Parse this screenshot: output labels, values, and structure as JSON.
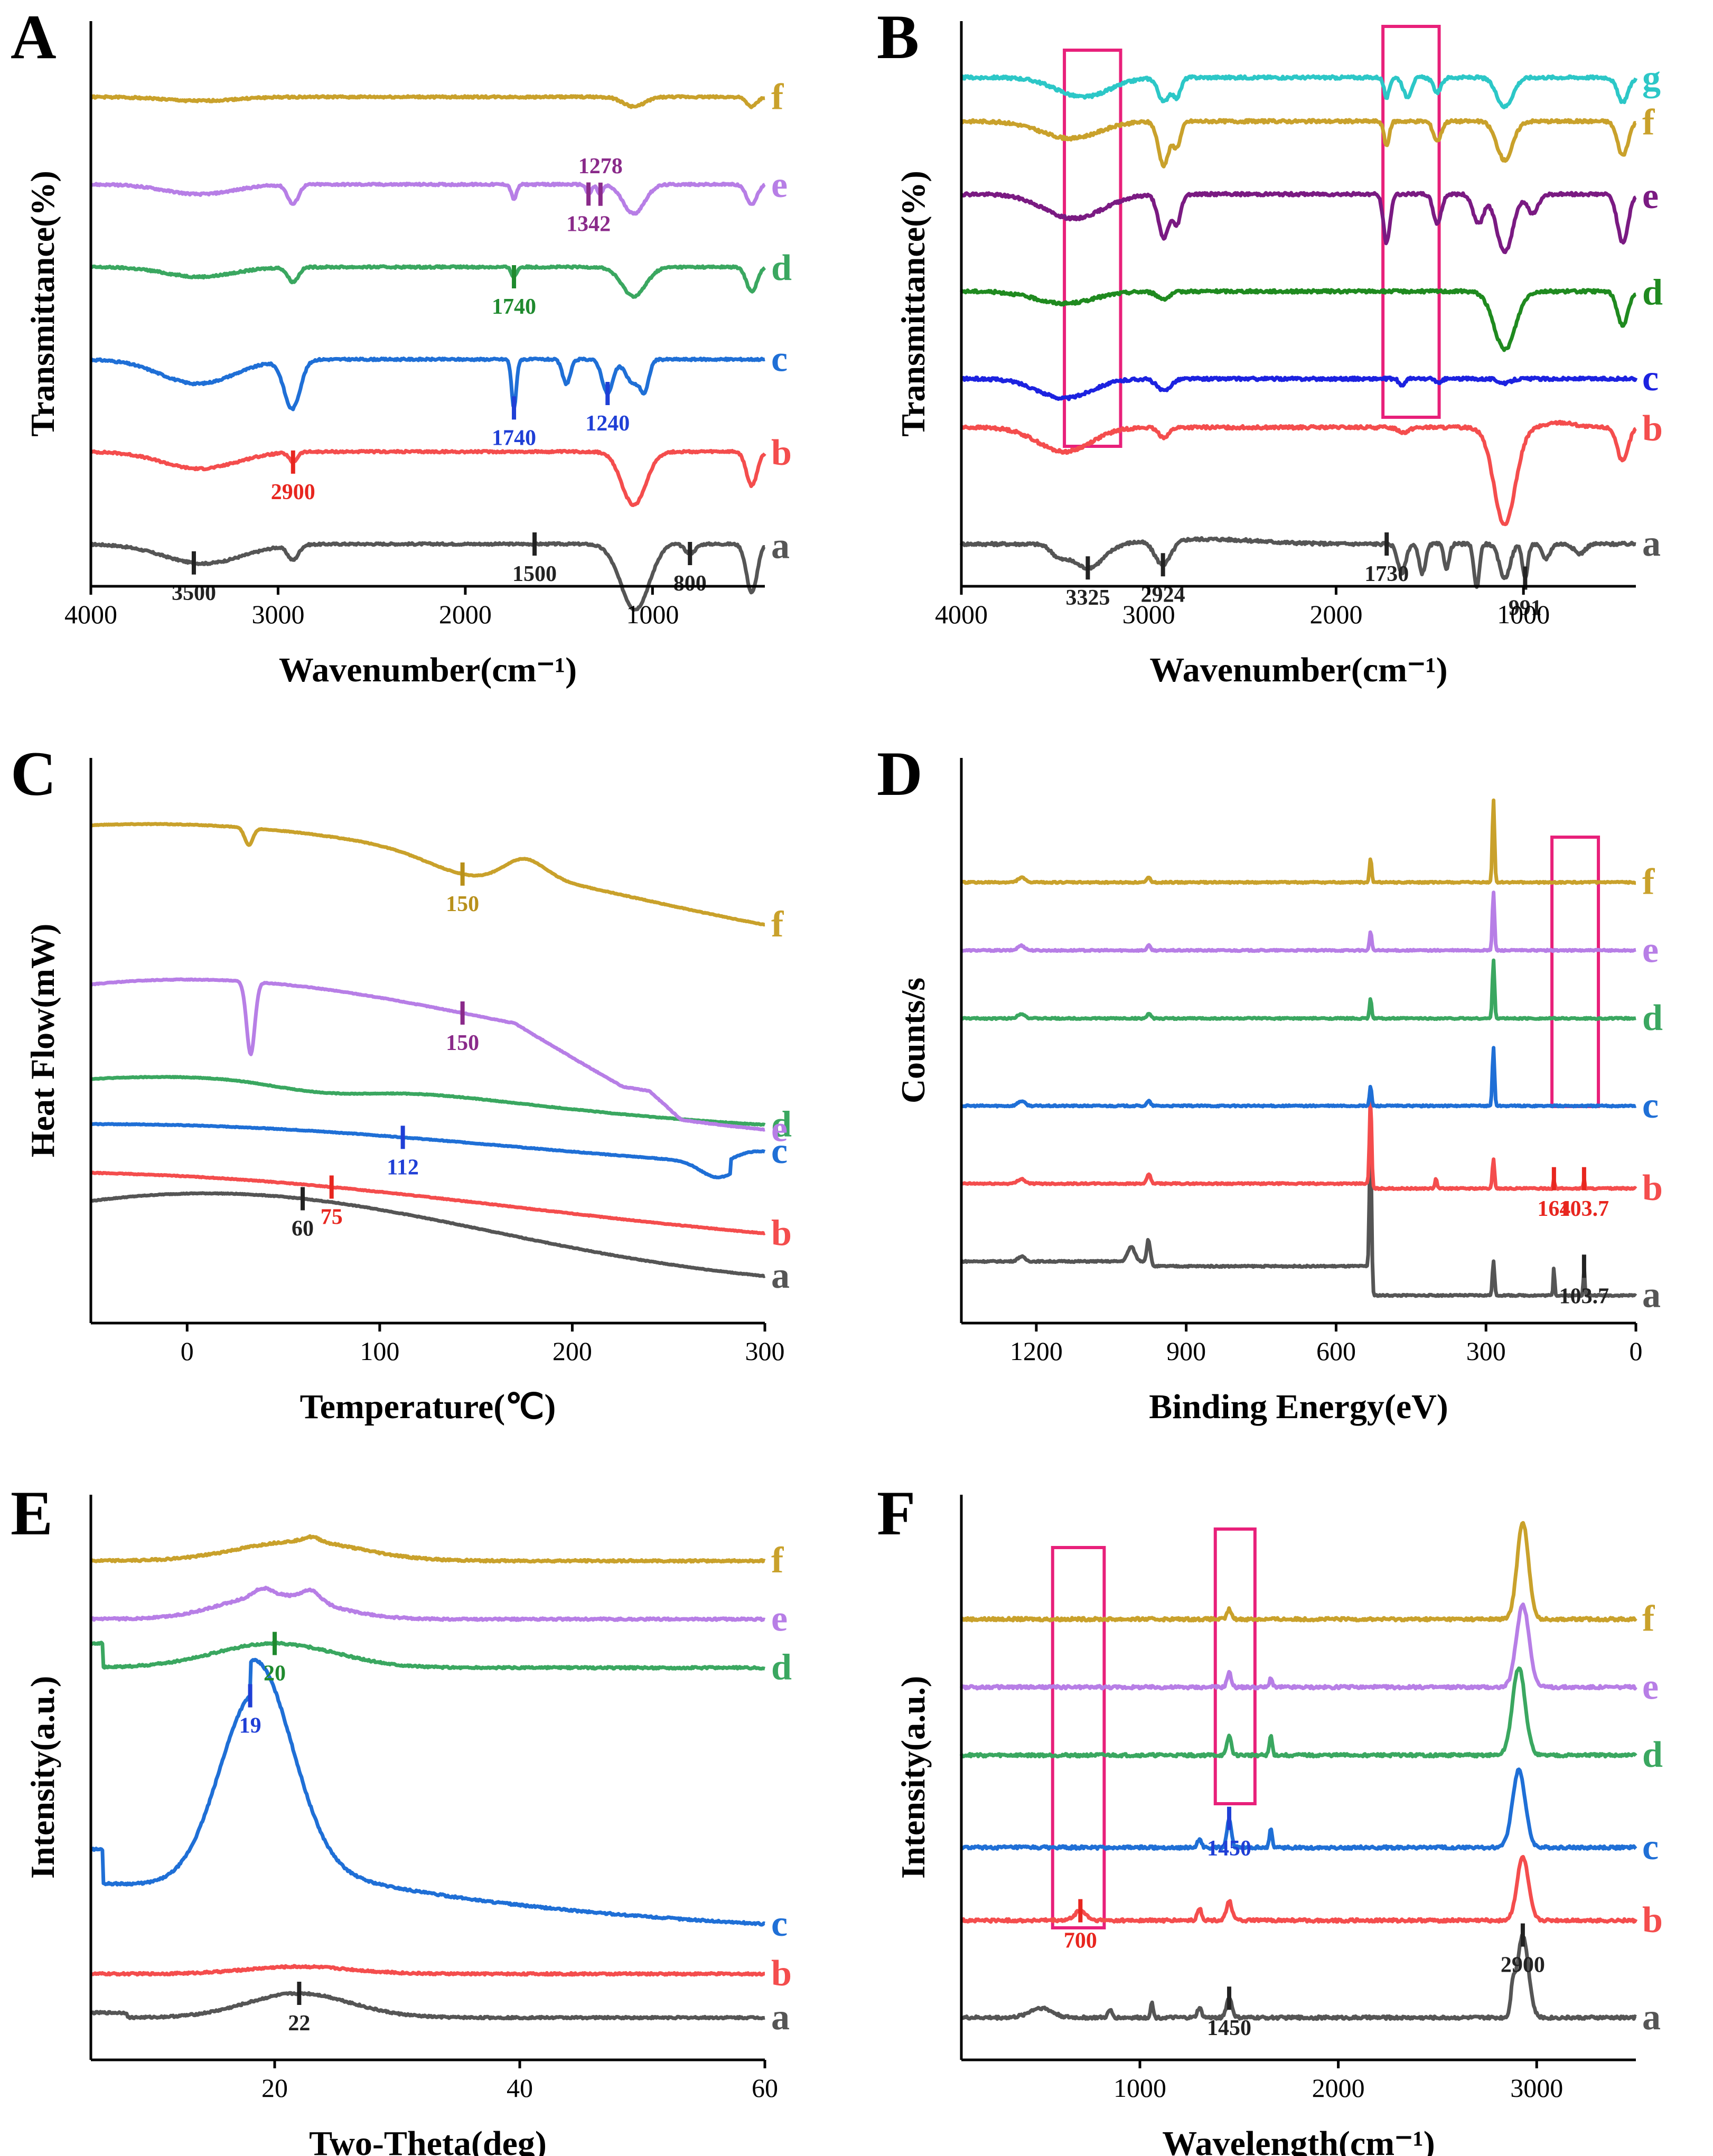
{
  "figure": {
    "panels": [
      {
        "letter": "A",
        "xlabel": "Wavenumber(cm⁻¹)",
        "ylabel": "Transmittance(%)",
        "xticks": [
          "4000",
          "3000",
          "2000",
          "1000"
        ],
        "curves": [
          "a",
          "b",
          "c",
          "d",
          "e",
          "f"
        ]
      },
      {
        "letter": "B",
        "xlabel": "Wavenumber(cm⁻¹)",
        "ylabel": "Transmittance(%)",
        "xticks": [
          "4000",
          "3000",
          "2000",
          "1000"
        ],
        "curves": [
          "a",
          "b",
          "c",
          "d",
          "e",
          "f",
          "g"
        ]
      },
      {
        "letter": "C",
        "xlabel": "Temperature(℃)",
        "ylabel": "Heat Flow(mW)",
        "xticks": [
          "0",
          "100",
          "200",
          "300"
        ],
        "curves": [
          "a",
          "b",
          "c",
          "d",
          "e",
          "f"
        ]
      },
      {
        "letter": "D",
        "xlabel": "Binding Energy(eV)",
        "ylabel": "Counts/s",
        "xticks": [
          "1200",
          "900",
          "600",
          "300",
          "0"
        ],
        "curves": [
          "a",
          "b",
          "c",
          "d",
          "e",
          "f"
        ]
      },
      {
        "letter": "E",
        "xlabel": "Two-Theta(deg)",
        "ylabel": "Intensity(a.u.)",
        "xticks": [
          "20",
          "40",
          "60"
        ],
        "curves": [
          "a",
          "b",
          "c",
          "d",
          "e",
          "f"
        ]
      },
      {
        "letter": "F",
        "xlabel": "Wavelength(cm⁻¹)",
        "ylabel": "Intensity(a.u.)",
        "xticks": [
          "1000",
          "2000",
          "3000"
        ],
        "curves": [
          "a",
          "b",
          "c",
          "d",
          "e",
          "f"
        ]
      }
    ]
  },
  "chart_data": [
    {
      "panel": "A",
      "type": "line",
      "xlabel": "Wavenumber(cm⁻¹)",
      "ylabel": "Transmittance(%)",
      "xlim": [
        4000,
        400
      ],
      "xticks": [
        4000,
        3000,
        2000,
        1000
      ],
      "yticks": [],
      "series": [
        {
          "name": "a",
          "color": "#555555",
          "baseline": 0.0
        },
        {
          "name": "b",
          "color": "#f44d4d",
          "baseline": 0.19
        },
        {
          "name": "c",
          "color": "#1f6fd6",
          "baseline": 0.38
        },
        {
          "name": "d",
          "color": "#3aa760",
          "baseline": 0.57
        },
        {
          "name": "e",
          "color": "#b77ee6",
          "baseline": 0.74
        },
        {
          "name": "f",
          "color": "#c9a12b",
          "baseline": 0.92
        }
      ],
      "annotations": [
        {
          "text": "3500",
          "x": 3450,
          "series": "a",
          "color": "#222222"
        },
        {
          "text": "1500",
          "x": 1630,
          "series": "a",
          "color": "#222222"
        },
        {
          "text": "800",
          "x": 800,
          "series": "a",
          "color": "#222222"
        },
        {
          "text": "2900",
          "x": 2920,
          "series": "b",
          "color": "#e8261f"
        },
        {
          "text": "1740",
          "x": 1740,
          "series": "c",
          "color": "#1f3fd6"
        },
        {
          "text": "1240",
          "x": 1240,
          "series": "c",
          "color": "#1f3fd6"
        },
        {
          "text": "1740",
          "x": 1740,
          "series": "d",
          "color": "#1f8a2e"
        },
        {
          "text": "1342",
          "x": 1342,
          "series": "e",
          "color": "#8a2a8a"
        },
        {
          "text": "1278",
          "x": 1278,
          "series": "e",
          "color": "#8a2a8a"
        }
      ]
    },
    {
      "panel": "B",
      "type": "line",
      "xlabel": "Wavenumber(cm⁻¹)",
      "ylabel": "Transmittance(%)",
      "xlim": [
        4000,
        400
      ],
      "xticks": [
        4000,
        3000,
        2000,
        1000
      ],
      "yticks": [],
      "series": [
        {
          "name": "a",
          "color": "#555555",
          "baseline": 0.0
        },
        {
          "name": "b",
          "color": "#f44d4d",
          "baseline": 0.24
        },
        {
          "name": "c",
          "color": "#1c22e0",
          "baseline": 0.34
        },
        {
          "name": "d",
          "color": "#1f8a1f",
          "baseline": 0.52
        },
        {
          "name": "e",
          "color": "#7a1a82",
          "baseline": 0.72
        },
        {
          "name": "f",
          "color": "#c9a12b",
          "baseline": 0.87
        },
        {
          "name": "g",
          "color": "#2cc7c7",
          "baseline": 0.96
        }
      ],
      "highlight_boxes": [
        {
          "x_range": [
            3450,
            3150
          ]
        },
        {
          "x_range": [
            1750,
            1450
          ]
        }
      ],
      "annotations": [
        {
          "text": "3325",
          "x": 3325,
          "series": "a",
          "color": "#222222"
        },
        {
          "text": "2924",
          "x": 2924,
          "series": "a",
          "color": "#222222"
        },
        {
          "text": "1730",
          "x": 1730,
          "series": "a",
          "color": "#222222"
        },
        {
          "text": "991",
          "x": 991,
          "series": "a",
          "color": "#222222"
        }
      ]
    },
    {
      "panel": "C",
      "type": "line",
      "xlabel": "Temperature(℃)",
      "ylabel": "Heat Flow(mW)",
      "xlim": [
        -50,
        300
      ],
      "xticks": [
        0,
        100,
        200,
        300
      ],
      "yticks": [],
      "series": [
        {
          "name": "a",
          "color": "#555555",
          "baseline": 0.0
        },
        {
          "name": "b",
          "color": "#f44d4d",
          "baseline": 0.12
        },
        {
          "name": "c",
          "color": "#1f6fd6",
          "baseline": 0.26
        },
        {
          "name": "d",
          "color": "#3aa760",
          "baseline": 0.33
        },
        {
          "name": "e",
          "color": "#b77ee6",
          "baseline": 0.42
        },
        {
          "name": "f",
          "color": "#c9a12b",
          "baseline": 0.74
        }
      ],
      "annotations": [
        {
          "text": "60",
          "x": 60,
          "series": "a",
          "color": "#222222"
        },
        {
          "text": "75",
          "x": 75,
          "series": "b",
          "color": "#e8261f"
        },
        {
          "text": "112",
          "x": 112,
          "series": "c",
          "color": "#1f3fd6"
        },
        {
          "text": "150",
          "x": 143,
          "series": "e",
          "color": "#8a2a8a"
        },
        {
          "text": "150",
          "x": 143,
          "series": "f",
          "color": "#b8901a"
        }
      ]
    },
    {
      "panel": "D",
      "type": "line",
      "xlabel": "Binding Energy(eV)",
      "ylabel": "Counts/s",
      "xlim": [
        1350,
        0
      ],
      "xticks": [
        1200,
        900,
        600,
        300,
        0
      ],
      "yticks": [],
      "series": [
        {
          "name": "a",
          "color": "#555555",
          "baseline": 0.0
        },
        {
          "name": "b",
          "color": "#f44d4d",
          "baseline": 0.19
        },
        {
          "name": "c",
          "color": "#1f6fd6",
          "baseline": 0.36
        },
        {
          "name": "d",
          "color": "#3aa760",
          "baseline": 0.54
        },
        {
          "name": "e",
          "color": "#b77ee6",
          "baseline": 0.68
        },
        {
          "name": "f",
          "color": "#c9a12b",
          "baseline": 0.82
        }
      ],
      "highlight_boxes": [
        {
          "x_range": [
            168,
            75
          ]
        }
      ],
      "annotations": [
        {
          "text": "164",
          "x": 164,
          "series": "b",
          "color": "#e8261f"
        },
        {
          "text": "103.7",
          "x": 103.7,
          "series": "b",
          "color": "#e8261f"
        },
        {
          "text": "103.7",
          "x": 103.7,
          "series": "a",
          "color": "#222222"
        }
      ]
    },
    {
      "panel": "E",
      "type": "line",
      "xlabel": "Two-Theta(deg)",
      "ylabel": "Intensity(a.u.)",
      "xlim": [
        5,
        60
      ],
      "xticks": [
        20,
        40,
        60
      ],
      "yticks": [],
      "series": [
        {
          "name": "a",
          "color": "#555555",
          "baseline": 0.0
        },
        {
          "name": "b",
          "color": "#f44d4d",
          "baseline": 0.09
        },
        {
          "name": "c",
          "color": "#1f6fd6",
          "baseline": 0.22
        },
        {
          "name": "d",
          "color": "#3aa760",
          "baseline": 0.72
        },
        {
          "name": "e",
          "color": "#b77ee6",
          "baseline": 0.82
        },
        {
          "name": "f",
          "color": "#c9a12b",
          "baseline": 0.94
        }
      ],
      "annotations": [
        {
          "text": "22",
          "x": 22,
          "series": "a",
          "color": "#222222"
        },
        {
          "text": "19",
          "x": 18,
          "series": "c",
          "color": "#1f3fd6"
        },
        {
          "text": "20",
          "x": 20,
          "series": "d",
          "color": "#1f8a2e"
        }
      ]
    },
    {
      "panel": "F",
      "type": "line",
      "xlabel": "Wavelength(cm⁻¹)",
      "ylabel": "Intensity(a.u.)",
      "xlim": [
        100,
        3500
      ],
      "xticks": [
        1000,
        2000,
        3000
      ],
      "yticks": [],
      "series": [
        {
          "name": "a",
          "color": "#555555",
          "baseline": 0.0
        },
        {
          "name": "b",
          "color": "#f44d4d",
          "baseline": 0.2
        },
        {
          "name": "c",
          "color": "#1f6fd6",
          "baseline": 0.35
        },
        {
          "name": "d",
          "color": "#3aa760",
          "baseline": 0.54
        },
        {
          "name": "e",
          "color": "#b77ee6",
          "baseline": 0.68
        },
        {
          "name": "f",
          "color": "#c9a12b",
          "baseline": 0.82
        }
      ],
      "highlight_boxes": [
        {
          "x_range": [
            560,
            820
          ]
        },
        {
          "x_range": [
            1380,
            1580
          ]
        }
      ],
      "annotations": [
        {
          "text": "1450",
          "x": 1450,
          "series": "a",
          "color": "#222222"
        },
        {
          "text": "2900",
          "x": 2930,
          "series": "a",
          "color": "#222222"
        },
        {
          "text": "700",
          "x": 700,
          "series": "b",
          "color": "#e8261f"
        },
        {
          "text": "1450",
          "x": 1450,
          "series": "c",
          "color": "#1f3fd6"
        }
      ]
    }
  ]
}
